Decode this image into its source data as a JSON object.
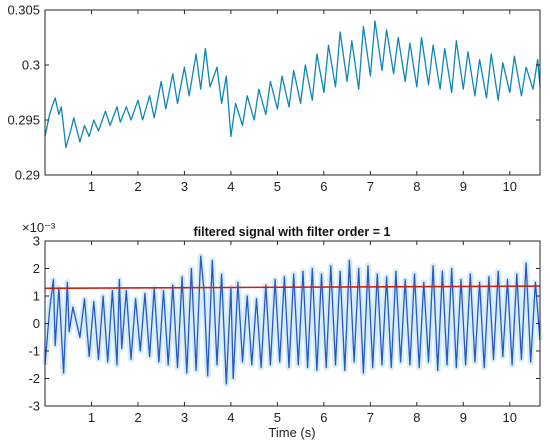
{
  "colors": {
    "raw_signal": "#0e86b5",
    "filtered_signal": "#2a57c4",
    "filtered_fill": "#d6eef8",
    "threshold": "#d01f10",
    "axes": "#262626",
    "background": "#ffffff"
  },
  "chart_data": [
    {
      "type": "line",
      "title": "",
      "xlabel": "",
      "ylabel": "",
      "xlim": [
        0,
        10.65
      ],
      "ylim": [
        0.29,
        0.305
      ],
      "x_ticks": [
        1,
        2,
        3,
        4,
        5,
        6,
        7,
        8,
        9,
        10
      ],
      "x_tick_labels": [
        "1",
        "2",
        "3",
        "4",
        "5",
        "6",
        "7",
        "8",
        "9",
        "10"
      ],
      "y_ticks": [
        0.29,
        0.295,
        0.3,
        0.305
      ],
      "y_tick_labels": [
        "0.29",
        "0.295",
        "0.3",
        "0.305"
      ],
      "grid": false,
      "series": [
        {
          "color": "#0e86b5",
          "x": [
            0.0,
            0.1,
            0.15,
            0.22,
            0.3,
            0.35,
            0.45,
            0.55,
            0.62,
            0.75,
            0.85,
            0.95,
            1.05,
            1.15,
            1.3,
            1.4,
            1.55,
            1.62,
            1.75,
            1.85,
            2.0,
            2.1,
            2.25,
            2.35,
            2.5,
            2.6,
            2.75,
            2.85,
            3.0,
            3.1,
            3.25,
            3.35,
            3.45,
            3.55,
            3.7,
            3.8,
            3.9,
            4.0,
            4.1,
            4.25,
            4.35,
            4.5,
            4.6,
            4.75,
            4.85,
            5.0,
            5.1,
            5.25,
            5.35,
            5.5,
            5.6,
            5.75,
            5.85,
            6.0,
            6.1,
            6.25,
            6.35,
            6.5,
            6.6,
            6.75,
            6.85,
            7.0,
            7.1,
            7.25,
            7.35,
            7.5,
            7.6,
            7.75,
            7.85,
            8.0,
            8.1,
            8.25,
            8.35,
            8.5,
            8.6,
            8.75,
            8.85,
            9.0,
            9.1,
            9.25,
            9.35,
            9.5,
            9.6,
            9.75,
            9.85,
            10.0,
            10.1,
            10.25,
            10.35,
            10.5,
            10.6,
            10.65
          ],
          "values": [
            0.2935,
            0.2955,
            0.2962,
            0.297,
            0.2955,
            0.2962,
            0.2925,
            0.294,
            0.2952,
            0.293,
            0.2945,
            0.2935,
            0.295,
            0.294,
            0.2958,
            0.2945,
            0.2962,
            0.2948,
            0.2962,
            0.295,
            0.2968,
            0.295,
            0.2972,
            0.2952,
            0.2985,
            0.296,
            0.2992,
            0.2965,
            0.2998,
            0.2972,
            0.301,
            0.2978,
            0.3015,
            0.298,
            0.2998,
            0.2965,
            0.299,
            0.2935,
            0.2965,
            0.2945,
            0.2972,
            0.295,
            0.2978,
            0.2955,
            0.2985,
            0.296,
            0.299,
            0.2962,
            0.2995,
            0.2965,
            0.3,
            0.2968,
            0.301,
            0.2975,
            0.3018,
            0.298,
            0.303,
            0.2985,
            0.3022,
            0.2978,
            0.3035,
            0.299,
            0.304,
            0.2995,
            0.3032,
            0.2992,
            0.3025,
            0.2985,
            0.302,
            0.298,
            0.3025,
            0.2982,
            0.3018,
            0.2978,
            0.3015,
            0.2975,
            0.3022,
            0.2978,
            0.3012,
            0.2972,
            0.3005,
            0.297,
            0.301,
            0.2968,
            0.3002,
            0.2975,
            0.3008,
            0.2972,
            0.2998,
            0.2978,
            0.3005,
            0.298
          ]
        }
      ]
    },
    {
      "type": "line",
      "title": "filtered signal with filter order = 1",
      "xlabel": "Time (s)",
      "ylabel": "",
      "xlim": [
        0,
        10.65
      ],
      "ylim": [
        -3,
        3
      ],
      "y_exponent_label": "×10⁻³",
      "x_ticks": [
        1,
        2,
        3,
        4,
        5,
        6,
        7,
        8,
        9,
        10
      ],
      "x_tick_labels": [
        "1",
        "2",
        "3",
        "4",
        "5",
        "6",
        "7",
        "8",
        "9",
        "10"
      ],
      "y_ticks": [
        -3,
        -2,
        -1,
        0,
        1,
        2,
        3
      ],
      "y_tick_labels": [
        "-3",
        "-2",
        "-1",
        "0",
        "1",
        "2",
        "3"
      ],
      "grid": false,
      "threshold": {
        "x": [
          0.0,
          10.65
        ],
        "y": [
          1.28,
          1.36
        ],
        "color": "#d01f10"
      },
      "series": [
        {
          "color": "#2a57c4",
          "x": [
            0.0,
            0.1,
            0.18,
            0.22,
            0.3,
            0.4,
            0.48,
            0.52,
            0.6,
            0.75,
            0.85,
            0.95,
            1.05,
            1.15,
            1.25,
            1.35,
            1.45,
            1.55,
            1.6,
            1.65,
            1.75,
            1.85,
            1.95,
            2.05,
            2.15,
            2.25,
            2.35,
            2.45,
            2.55,
            2.65,
            2.75,
            2.85,
            2.95,
            3.05,
            3.15,
            3.25,
            3.35,
            3.42,
            3.5,
            3.6,
            3.7,
            3.8,
            3.9,
            4.0,
            4.05,
            4.15,
            4.25,
            4.35,
            4.45,
            4.55,
            4.65,
            4.75,
            4.85,
            4.95,
            5.05,
            5.15,
            5.25,
            5.35,
            5.45,
            5.55,
            5.65,
            5.75,
            5.85,
            5.95,
            6.05,
            6.15,
            6.25,
            6.35,
            6.45,
            6.55,
            6.65,
            6.75,
            6.85,
            6.95,
            7.05,
            7.15,
            7.25,
            7.35,
            7.45,
            7.55,
            7.65,
            7.75,
            7.85,
            7.95,
            8.05,
            8.15,
            8.25,
            8.35,
            8.45,
            8.55,
            8.65,
            8.75,
            8.85,
            8.95,
            9.05,
            9.15,
            9.25,
            9.35,
            9.45,
            9.55,
            9.65,
            9.75,
            9.85,
            9.95,
            10.05,
            10.15,
            10.25,
            10.35,
            10.45,
            10.55,
            10.65
          ],
          "values": [
            -1.5,
            0.5,
            1.6,
            -0.8,
            1.3,
            -1.8,
            1.5,
            -0.3,
            0.6,
            -0.5,
            0.9,
            -1.2,
            0.8,
            -1.3,
            1.0,
            -1.4,
            1.2,
            -1.5,
            1.6,
            -0.9,
            1.2,
            -1.3,
            0.9,
            -1.0,
            1.1,
            -1.2,
            1.3,
            -1.4,
            1.2,
            -1.5,
            1.4,
            -1.6,
            1.7,
            -1.8,
            2.0,
            -1.7,
            2.45,
            1.2,
            -1.9,
            2.3,
            -1.5,
            1.8,
            -2.2,
            1.3,
            -2.0,
            1.5,
            -1.4,
            1.0,
            -1.5,
            0.9,
            -1.6,
            1.4,
            -1.5,
            1.6,
            -1.4,
            1.7,
            -1.6,
            1.8,
            -1.5,
            1.9,
            -1.6,
            2.0,
            -1.7,
            1.8,
            -1.6,
            2.1,
            -1.5,
            1.9,
            -1.7,
            2.3,
            -1.4,
            2.0,
            -1.8,
            2.1,
            -1.6,
            1.8,
            -1.5,
            1.7,
            -1.6,
            1.9,
            -1.4,
            1.6,
            -1.5,
            1.8,
            -1.6,
            1.5,
            -1.4,
            2.1,
            -1.7,
            1.9,
            -1.5,
            2.0,
            -1.6,
            1.6,
            -1.5,
            1.8,
            -1.4,
            1.5,
            -1.6,
            1.7,
            -1.3,
            1.9,
            -1.2,
            1.6,
            -1.5,
            1.8,
            -1.3,
            2.2,
            -1.4,
            1.5,
            -0.6
          ]
        }
      ]
    }
  ]
}
